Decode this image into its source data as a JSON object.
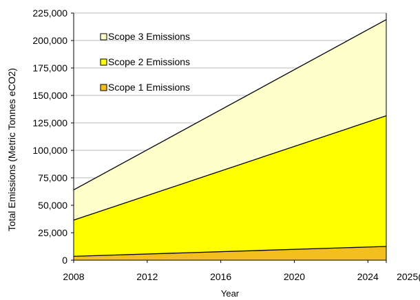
{
  "chart_data": {
    "type": "area",
    "stacked": true,
    "xlabel": "Year",
    "ylabel": "Total Emissions (Metric Tonnes eCO2)",
    "xlim": [
      2008,
      2025
    ],
    "ylim": [
      0,
      225000
    ],
    "x_ticks": [
      "2008",
      "2012",
      "2016",
      "2020",
      "2024",
      "2025("
    ],
    "y_ticks": [
      "0",
      "25,000",
      "50,000",
      "75,000",
      "100,000",
      "125,000",
      "150,000",
      "175,000",
      "200,000",
      "225,000"
    ],
    "x": [
      2008,
      2025
    ],
    "series": [
      {
        "name": "Scope 1 Emissions",
        "values": [
          3500,
          12500
        ],
        "color": "#f2bf1e"
      },
      {
        "name": "Scope 2 Emissions",
        "values": [
          33000,
          119000
        ],
        "color": "#ffff00"
      },
      {
        "name": "Scope 3 Emissions",
        "values": [
          27500,
          87500
        ],
        "color": "#ffffcc"
      }
    ],
    "legend_order": [
      "Scope 3 Emissions",
      "Scope 2 Emissions",
      "Scope 1 Emissions"
    ],
    "legend_position": "top-left",
    "grid": true
  }
}
